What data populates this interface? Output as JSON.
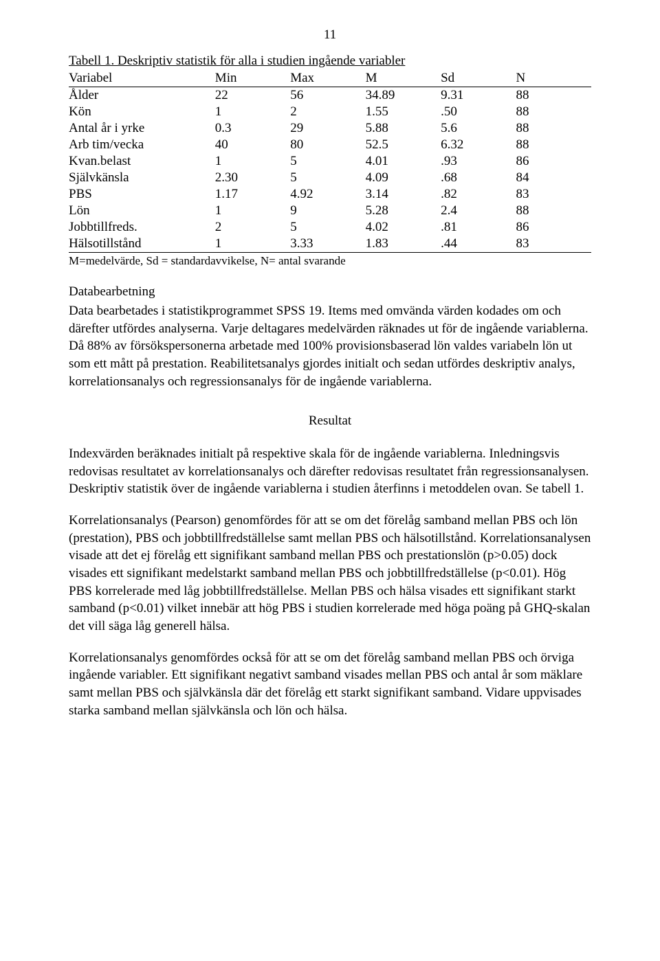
{
  "page_number": "11",
  "table": {
    "caption": "Tabell 1. Deskriptiv statistik för alla i studien ingående variabler",
    "columns": [
      "Variabel",
      "Min",
      "Max",
      "M",
      "Sd",
      "N"
    ],
    "rows": [
      [
        "Ålder",
        "22",
        "56",
        "34.89",
        "9.31",
        "88"
      ],
      [
        "Kön",
        "1",
        "2",
        "1.55",
        ".50",
        "88"
      ],
      [
        "Antal år i yrke",
        "0.3",
        "29",
        "5.88",
        "5.6",
        "88"
      ],
      [
        "Arb tim/vecka",
        "40",
        "80",
        "52.5",
        "6.32",
        "88"
      ],
      [
        "Kvan.belast",
        "1",
        "5",
        "4.01",
        ".93",
        "86"
      ],
      [
        "Självkänsla",
        "2.30",
        "5",
        "4.09",
        ".68",
        "84"
      ],
      [
        "PBS",
        "1.17",
        "4.92",
        "3.14",
        ".82",
        "83"
      ],
      [
        "Lön",
        "1",
        "9",
        "5.28",
        "2.4",
        "88"
      ],
      [
        "Jobbtillfreds.",
        "2",
        "5",
        "4.02",
        ".81",
        "86"
      ],
      [
        "Hälsotillstånd",
        "1",
        "3.33",
        "1.83",
        ".44",
        "83"
      ]
    ],
    "note": "M=medelvärde, Sd = standardavvikelse, N= antal svarande"
  },
  "sections": {
    "databearbetning_heading": "Databearbetning",
    "databearbetning_body": "Data bearbetades i statistikprogrammet SPSS 19. Items med omvända värden kodades om och därefter utfördes analyserna. Varje deltagares medelvärden räknades ut för de ingående variablerna. Då 88% av försökspersonerna arbetade med 100% provisionsbaserad lön valdes variabeln lön ut som ett mått på prestation. Reabilitetsanalys gjordes initialt och sedan utfördes deskriptiv analys, korrelationsanalys och regressionsanalys för de ingående variablerna.",
    "resultat_heading": "Resultat",
    "resultat_p1": "Indexvärden beräknades initialt på respektive skala för de ingående variablerna. Inledningsvis redovisas resultatet av korrelationsanalys och därefter redovisas resultatet från regressionsanalysen. Deskriptiv statistik över de ingående variablerna i studien återfinns i metoddelen ovan. Se tabell 1.",
    "resultat_p2": "Korrelationsanalys (Pearson) genomfördes för att se om det förelåg samband mellan PBS och lön (prestation), PBS och jobbtillfredställelse samt mellan PBS och hälsotillstånd. Korrelationsanalysen visade att det ej förelåg ett signifikant samband mellan PBS och prestationslön (p>0.05) dock visades ett signifikant medelstarkt samband mellan PBS och jobbtillfredställelse (p<0.01). Hög PBS korrelerade med låg jobbtillfredställelse. Mellan PBS och hälsa visades ett signifikant starkt samband (p<0.01) vilket innebär att hög PBS i studien korrelerade med höga poäng på GHQ-skalan det vill säga låg generell hälsa.",
    "resultat_p3": "Korrelationsanalys genomfördes också för att se om det förelåg samband mellan PBS och örviga ingående variabler. Ett signifikant negativt samband visades mellan PBS och antal år som mäklare samt mellan PBS och självkänsla där det förelåg ett starkt signifikant samband. Vidare uppvisades starka samband mellan självkänsla och lön och hälsa."
  }
}
